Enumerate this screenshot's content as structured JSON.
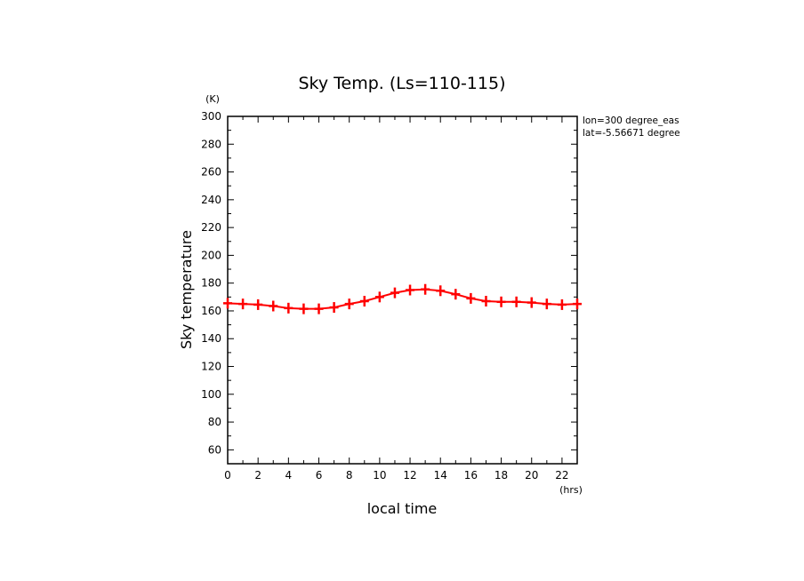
{
  "chart_data": {
    "type": "line",
    "title": "Sky Temp. (Ls=110-115)",
    "xlabel": "local time",
    "ylabel": "Sky temperature",
    "x_unit": "(hrs)",
    "y_unit": "(K)",
    "xlim": [
      0,
      23
    ],
    "ylim": [
      50,
      300
    ],
    "x_ticks": [
      0,
      2,
      4,
      6,
      8,
      10,
      12,
      14,
      16,
      18,
      20,
      22
    ],
    "y_ticks": [
      60,
      80,
      100,
      120,
      140,
      160,
      180,
      200,
      220,
      240,
      260,
      280,
      300
    ],
    "annotations": [
      "lon=300 degree_eas",
      "lat=-5.56671 degree"
    ],
    "grid": false,
    "series": [
      {
        "color": "#ff0000",
        "marker": "plus",
        "x": [
          0,
          1,
          2,
          3,
          4,
          5,
          6,
          7,
          8,
          9,
          10,
          11,
          12,
          13,
          14,
          15,
          16,
          17,
          18,
          19,
          20,
          21,
          22,
          23
        ],
        "values": [
          165.5,
          165,
          164.5,
          163.5,
          162,
          161.5,
          161.5,
          162.5,
          165,
          167,
          170,
          173,
          175,
          175.5,
          174.5,
          172,
          169,
          167,
          166.5,
          166.5,
          166,
          165,
          164.5,
          165
        ]
      }
    ]
  }
}
